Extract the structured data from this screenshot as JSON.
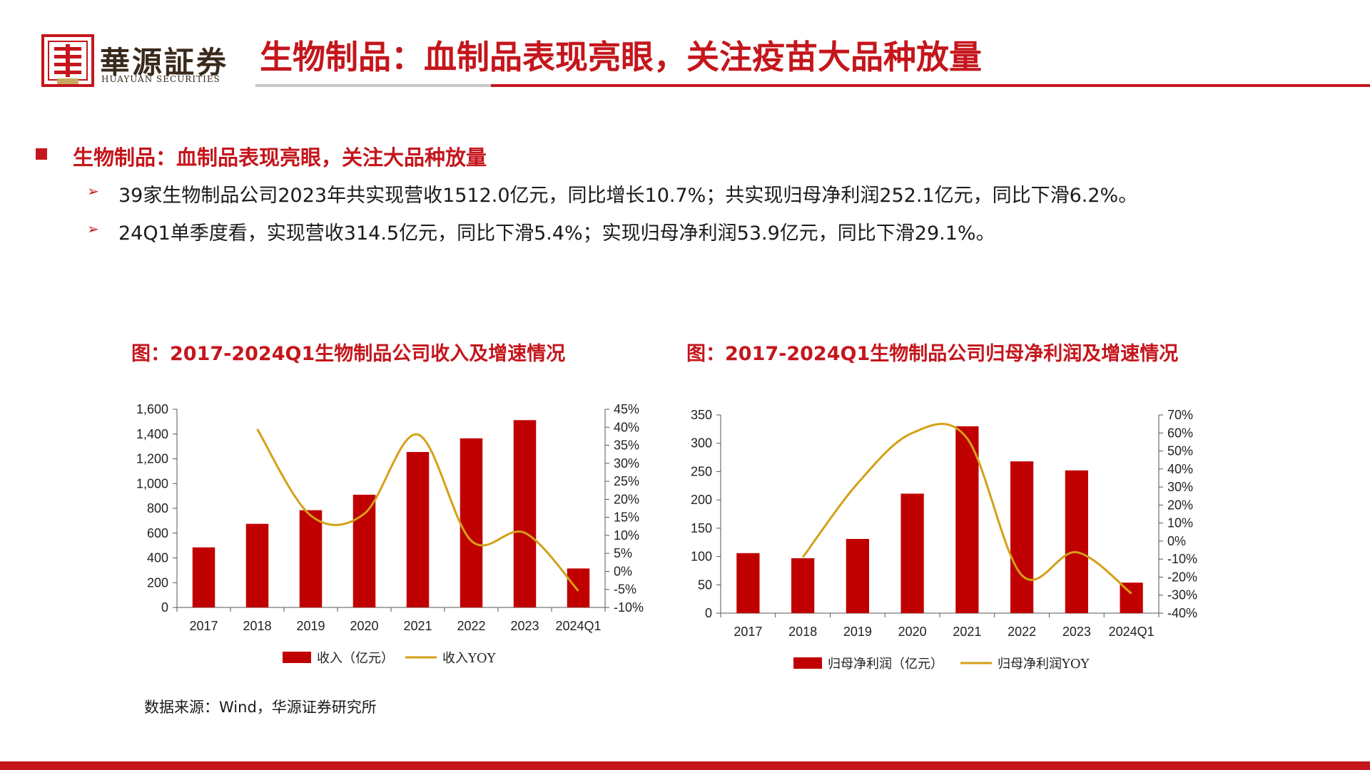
{
  "header": {
    "logo_text": "華源証券",
    "logo_sub": "HUAYUAN SECURITIES",
    "title": "生物制品：血制品表现亮眼，关注疫苗大品种放量"
  },
  "section": {
    "heading": "生物制品：血制品表现亮眼，关注大品种放量",
    "points": [
      "39家生物制品公司2023年共实现营收1512.0亿元，同比增长10.7%；共实现归母净利润252.1亿元，同比下滑6.2%。",
      "24Q1单季度看，实现营收314.5亿元，同比下滑5.4%；实现归母净利润53.9亿元，同比下滑29.1%。"
    ]
  },
  "colors": {
    "accent_red": "#c4161c",
    "bar_red": "#c00000",
    "line_gold": "#d4a017"
  },
  "chart_data": [
    {
      "type": "bar",
      "title": "图：2017-2024Q1生物制品公司收入及增速情况",
      "categories": [
        "2017",
        "2018",
        "2019",
        "2020",
        "2021",
        "2022",
        "2023",
        "2024Q1"
      ],
      "series": [
        {
          "name": "收入（亿元）",
          "type": "bar",
          "axis": "left",
          "values": [
            485,
            675,
            785,
            910,
            1255,
            1365,
            1512,
            314.5
          ]
        },
        {
          "name": "收入YOY",
          "type": "line",
          "axis": "right",
          "values": [
            null,
            39.5,
            15.5,
            16.0,
            38.0,
            8.5,
            10.7,
            -5.4
          ]
        }
      ],
      "ylim_left": [
        0,
        1600
      ],
      "ylim_right": [
        -10,
        45
      ],
      "yticks_left": [
        "0",
        "200",
        "400",
        "600",
        "800",
        "1,000",
        "1,200",
        "1,400",
        "1,600"
      ],
      "yticks_right": [
        "-10%",
        "-5%",
        "0%",
        "5%",
        "10%",
        "15%",
        "20%",
        "25%",
        "30%",
        "35%",
        "40%",
        "45%"
      ],
      "legend": "bottom"
    },
    {
      "type": "bar",
      "title": "图：2017-2024Q1生物制品公司归母净利润及增速情况",
      "categories": [
        "2017",
        "2018",
        "2019",
        "2020",
        "2021",
        "2022",
        "2023",
        "2024Q1"
      ],
      "series": [
        {
          "name": "归母净利润（亿元）",
          "type": "bar",
          "axis": "left",
          "values": [
            106,
            97,
            131,
            211,
            330,
            268,
            252.1,
            53.9
          ]
        },
        {
          "name": "归母净利润YOY",
          "type": "line",
          "axis": "right",
          "values": [
            null,
            -9,
            32,
            60,
            57,
            -19,
            -6.2,
            -29.1
          ]
        }
      ],
      "ylim_left": [
        0,
        350
      ],
      "ylim_right": [
        -40,
        70
      ],
      "yticks_left": [
        "0",
        "50",
        "100",
        "150",
        "200",
        "250",
        "300",
        "350"
      ],
      "yticks_right": [
        "-40%",
        "-30%",
        "-20%",
        "-10%",
        "0%",
        "10%",
        "20%",
        "30%",
        "40%",
        "50%",
        "60%",
        "70%"
      ],
      "legend": "bottom"
    }
  ],
  "source": "数据来源：Wind，华源证券研究所"
}
